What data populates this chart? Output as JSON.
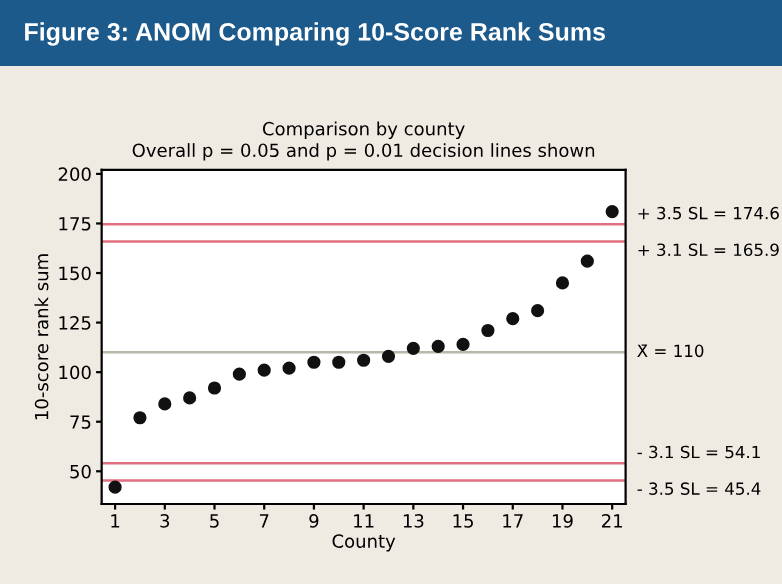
{
  "chart_data": {
    "type": "scatter",
    "title": "Figure 3: ANOM Comparing 10-Score Rank Sums",
    "subtitle": "Comparison by county\nOverall p = 0.05 and p = 0.01 decision lines shown",
    "xlabel": "County",
    "ylabel": "10-score rank sum",
    "x": [
      1,
      2,
      3,
      4,
      5,
      6,
      7,
      8,
      9,
      10,
      11,
      12,
      13,
      14,
      15,
      16,
      17,
      18,
      19,
      20,
      21
    ],
    "values": [
      42,
      77,
      84,
      87,
      92,
      99,
      101,
      102,
      105,
      105,
      106,
      108,
      112,
      113,
      114,
      121,
      127,
      131,
      145,
      156,
      181
    ],
    "color": "#111111",
    "marker": "circle",
    "xlim": [
      0.46,
      21.54
    ],
    "xticks": [
      1,
      3,
      5,
      7,
      9,
      11,
      13,
      15,
      17,
      19,
      21
    ],
    "ylim": [
      33.5,
      202
    ],
    "yticks": [
      50,
      75,
      100,
      125,
      150,
      175,
      200
    ],
    "grid": false,
    "legend": false,
    "ref_lines": [
      {
        "axis": "y",
        "value": 174.6,
        "label": "+ 3.5 SL = 174.6",
        "color": "#e07080"
      },
      {
        "axis": "y",
        "value": 165.9,
        "label": "+ 3.1 SL = 165.9",
        "color": "#e07080"
      },
      {
        "axis": "y",
        "value": 110,
        "label": "X̄ = 110",
        "color": "#b8b8a8"
      },
      {
        "axis": "y",
        "value": 54.1,
        "label": "- 3.1 SL = 54.1",
        "color": "#e07080"
      },
      {
        "axis": "y",
        "value": 45.4,
        "label": "- 3.5 SL = 45.4",
        "color": "#e07080"
      }
    ]
  }
}
